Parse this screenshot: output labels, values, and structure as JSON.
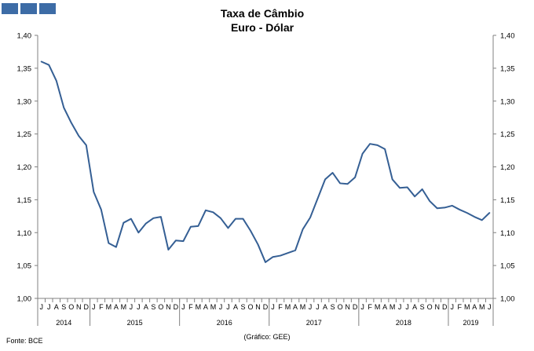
{
  "chart_data": {
    "type": "line",
    "title": "Taxa de Câmbio",
    "subtitle": "Euro - Dólar",
    "source": "Fonte: BCE",
    "credit": "(Gráfico: GEE)",
    "ylim": [
      1.0,
      1.4
    ],
    "yticks": [
      "1,00",
      "1,05",
      "1,10",
      "1,15",
      "1,20",
      "1,25",
      "1,30",
      "1,35",
      "1,40"
    ],
    "y_axes": "left and right",
    "grid": false,
    "series_color": "#355f94",
    "x": [
      "J",
      "J",
      "A",
      "S",
      "O",
      "N",
      "D",
      "J",
      "F",
      "M",
      "A",
      "M",
      "J",
      "J",
      "A",
      "S",
      "O",
      "N",
      "D",
      "J",
      "F",
      "M",
      "A",
      "M",
      "J",
      "J",
      "A",
      "S",
      "O",
      "N",
      "D",
      "J",
      "F",
      "M",
      "A",
      "M",
      "J",
      "J",
      "A",
      "S",
      "O",
      "N",
      "D",
      "J",
      "F",
      "M",
      "A",
      "M",
      "J",
      "J",
      "A",
      "S",
      "O",
      "N",
      "D",
      "J",
      "F",
      "M",
      "A",
      "M",
      "J"
    ],
    "years": [
      {
        "label": "2014",
        "start": 0,
        "count": 7
      },
      {
        "label": "2015",
        "start": 7,
        "count": 12
      },
      {
        "label": "2016",
        "start": 19,
        "count": 12
      },
      {
        "label": "2017",
        "start": 31,
        "count": 12
      },
      {
        "label": "2018",
        "start": 43,
        "count": 12
      },
      {
        "label": "2019",
        "start": 55,
        "count": 6
      }
    ],
    "series": [
      {
        "values": [
          1.36,
          1.355,
          1.331,
          1.29,
          1.267,
          1.247,
          1.233,
          1.162,
          1.135,
          1.084,
          1.078,
          1.115,
          1.121,
          1.1,
          1.114,
          1.122,
          1.124,
          1.074,
          1.088,
          1.087,
          1.109,
          1.11,
          1.134,
          1.131,
          1.122,
          1.107,
          1.121,
          1.121,
          1.103,
          1.082,
          1.055,
          1.063,
          1.065,
          1.069,
          1.073,
          1.105,
          1.123,
          1.152,
          1.181,
          1.191,
          1.175,
          1.174,
          1.184,
          1.22,
          1.235,
          1.233,
          1.227,
          1.181,
          1.168,
          1.169,
          1.155,
          1.166,
          1.148,
          1.137,
          1.138,
          1.141,
          1.135,
          1.13,
          1.124,
          1.119,
          1.13
        ]
      }
    ]
  }
}
